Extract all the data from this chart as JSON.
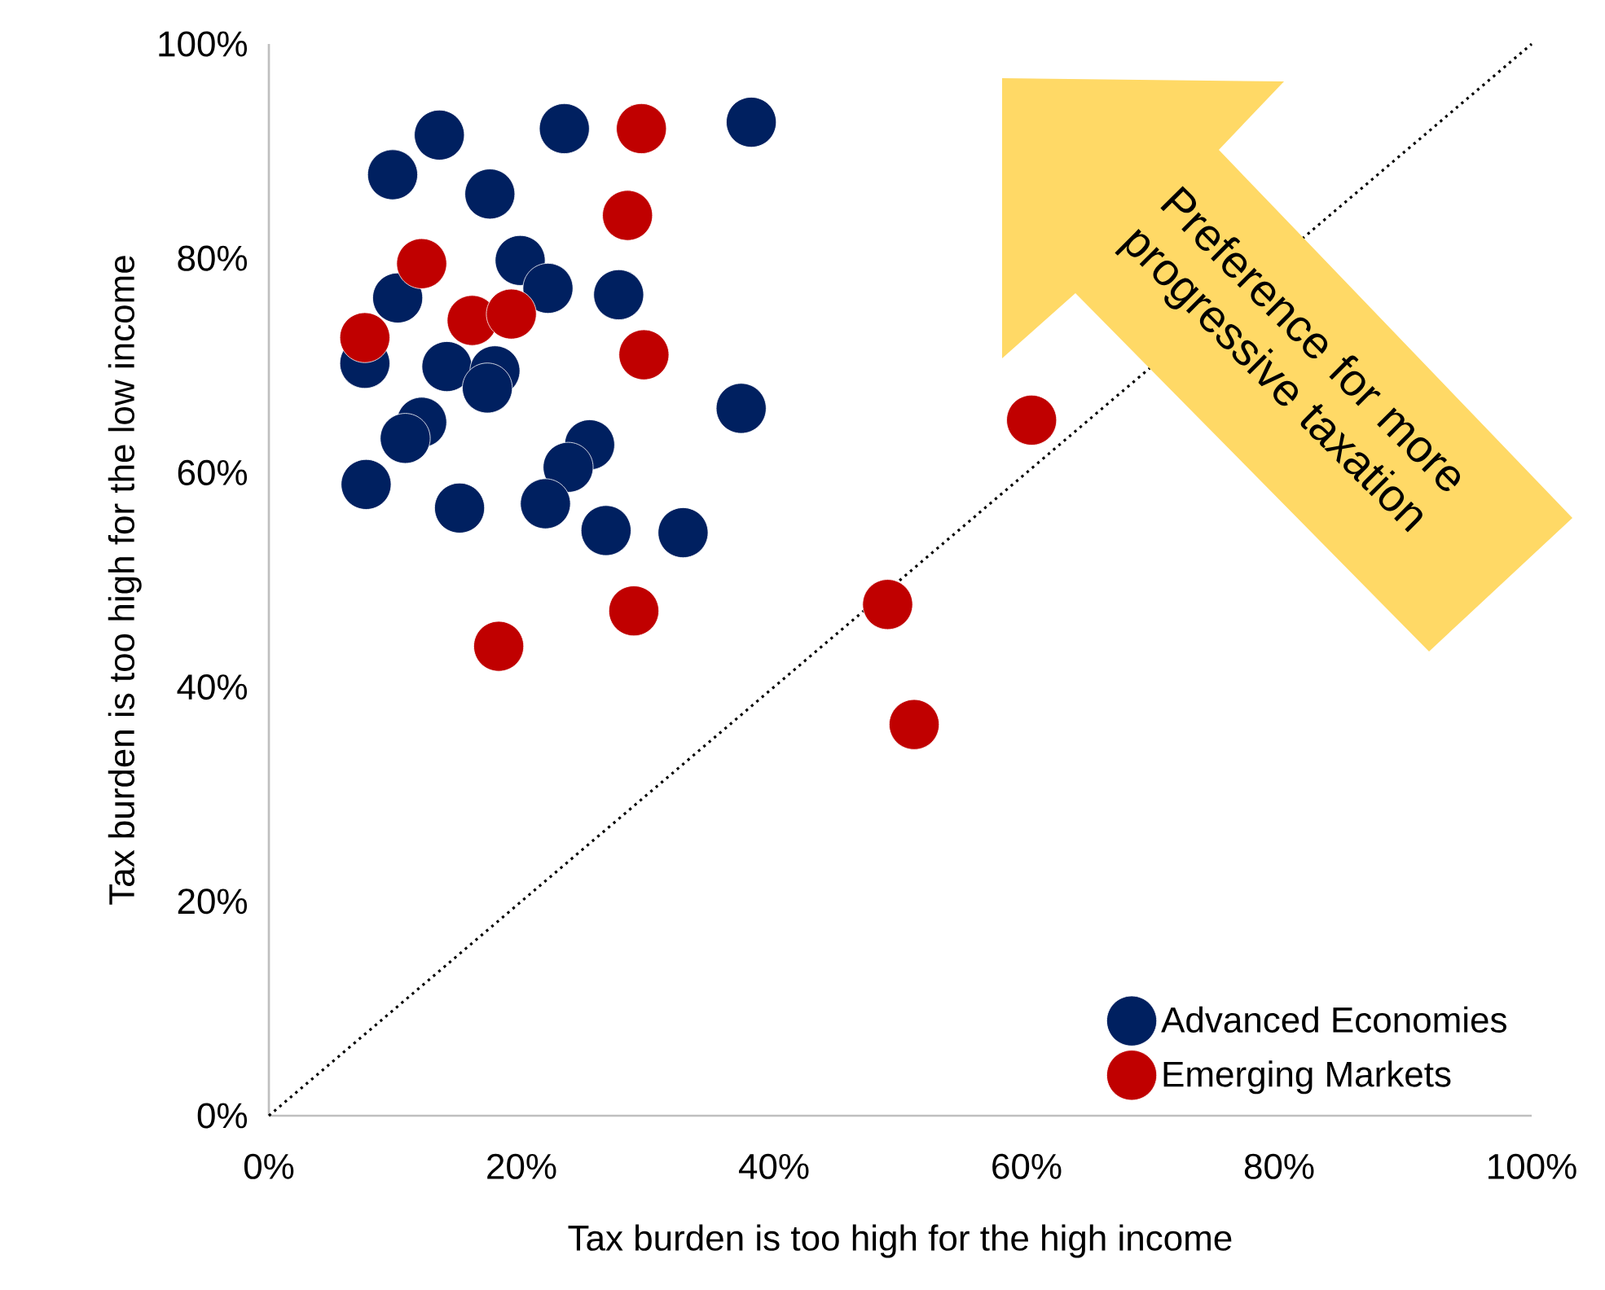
{
  "chart_data": {
    "type": "scatter",
    "xlabel": "Tax burden is too high for the high income",
    "ylabel": "Tax burden is too high for the low income",
    "xlim": [
      0,
      100
    ],
    "ylim": [
      0,
      100
    ],
    "xticks": [
      {
        "value": 0,
        "label": "0%"
      },
      {
        "value": 20,
        "label": "20%"
      },
      {
        "value": 40,
        "label": "40%"
      },
      {
        "value": 60,
        "label": "60%"
      },
      {
        "value": 80,
        "label": "80%"
      },
      {
        "value": 100,
        "label": "100%"
      }
    ],
    "yticks": [
      {
        "value": 0,
        "label": "0%"
      },
      {
        "value": 20,
        "label": "20%"
      },
      {
        "value": 40,
        "label": "40%"
      },
      {
        "value": 60,
        "label": "60%"
      },
      {
        "value": 80,
        "label": "80%"
      },
      {
        "value": 100,
        "label": "100%"
      }
    ],
    "legend": "bottom right",
    "marker": "circle",
    "annotations": [
      "Preference for more progressive taxation"
    ],
    "series": [
      {
        "name": "Advanced Economies",
        "color": "#002060",
        "x": [
          13.5,
          9.8,
          23.4,
          38.2,
          17.5,
          19.9,
          22.1,
          10.2,
          27.7,
          7.6,
          14.1,
          17.9,
          17.3,
          37.4,
          12.1,
          10.8,
          7.7,
          15.1,
          25.4,
          23.7,
          21.9,
          26.7,
          32.8
        ],
        "values": [
          91.5,
          87.8,
          92.1,
          92.7,
          86.0,
          79.8,
          77.2,
          76.3,
          76.6,
          70.2,
          69.9,
          69.5,
          67.9,
          66.0,
          64.7,
          63.2,
          58.9,
          56.7,
          62.6,
          60.5,
          57.1,
          54.6,
          54.4
        ]
      },
      {
        "name": "Emerging Markets",
        "color": "#c00000",
        "x": [
          29.5,
          28.4,
          12.1,
          16.1,
          19.2,
          7.6,
          29.7,
          28.9,
          18.2,
          60.4,
          49.0,
          51.1
        ],
        "values": [
          92.1,
          84.0,
          79.5,
          74.2,
          74.8,
          72.6,
          71.0,
          47.1,
          43.8,
          64.9,
          47.7,
          36.5
        ]
      },
      {
        "type": "line",
        "color": "#000000",
        "line_style": "dotted",
        "marker": "none",
        "x": [
          0,
          100
        ],
        "values": [
          0,
          100
        ]
      }
    ]
  }
}
